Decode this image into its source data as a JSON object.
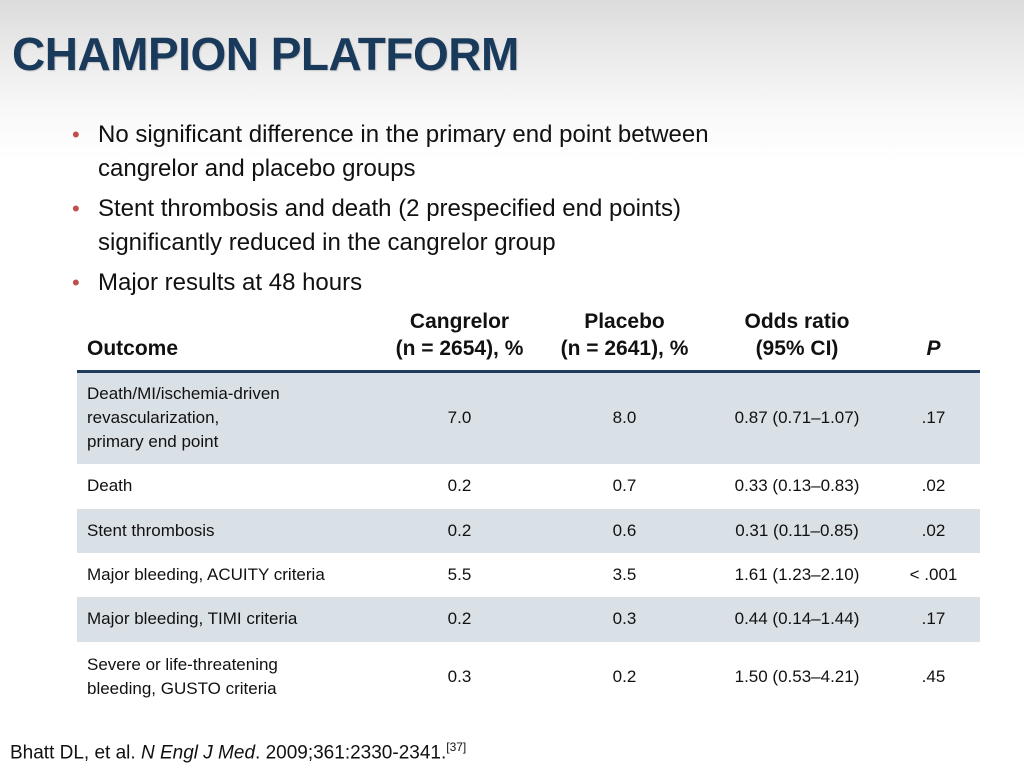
{
  "title": "CHAMPION PLATFORM",
  "bullets": [
    {
      "line1": "No significant difference in the primary end point between",
      "line2": "cangrelor and placebo groups"
    },
    {
      "line1": "Stent thrombosis and death (2 prespecified end points)",
      "line2": "significantly reduced in the cangrelor group"
    },
    {
      "line1": "Major results at 48 hours"
    }
  ],
  "table": {
    "headers": {
      "outcome": "Outcome",
      "cangrelor_l1": "Cangrelor",
      "cangrelor_l2": "(n = 2654), %",
      "placebo_l1": "Placebo",
      "placebo_l2": "(n = 2641), %",
      "odds_l1": "Odds ratio",
      "odds_l2": "(95% CI)",
      "p": "P"
    },
    "rows": [
      {
        "outcome_lines": [
          "Death/MI/ischemia-driven",
          "revascularization,",
          "primary end point"
        ],
        "cangrelor": "7.0",
        "placebo": "8.0",
        "odds_ratio": "0.87 (0.71–1.07)",
        "p": ".17"
      },
      {
        "outcome_lines": [
          "Death"
        ],
        "cangrelor": "0.2",
        "placebo": "0.7",
        "odds_ratio": "0.33 (0.13–0.83)",
        "p": ".02"
      },
      {
        "outcome_lines": [
          "Stent thrombosis"
        ],
        "cangrelor": "0.2",
        "placebo": "0.6",
        "odds_ratio": "0.31 (0.11–0.85)",
        "p": ".02"
      },
      {
        "outcome_lines": [
          "Major bleeding, ACUITY criteria"
        ],
        "cangrelor": "5.5",
        "placebo": "3.5",
        "odds_ratio": "1.61 (1.23–2.10)",
        "p": "< .001"
      },
      {
        "outcome_lines": [
          "Major bleeding, TIMI criteria"
        ],
        "cangrelor": "0.2",
        "placebo": "0.3",
        "odds_ratio": "0.44 (0.14–1.44)",
        "p": ".17"
      },
      {
        "outcome_lines": [
          "Severe or life-threatening",
          "bleeding, GUSTO criteria"
        ],
        "cangrelor": "0.3",
        "placebo": "0.2",
        "odds_ratio": "1.50 (0.53–4.21)",
        "p": ".45"
      }
    ]
  },
  "citation": {
    "authors": "Bhatt DL, et al. ",
    "journal": "N Engl J Med",
    "details": ". 2009;361:2330-2341.",
    "ref": "[37]"
  },
  "colors": {
    "title": "#1a3a5c",
    "bullet": "#c0504d",
    "row_shade": "#d9e0e6",
    "header_rule": "#1f3b5e"
  }
}
